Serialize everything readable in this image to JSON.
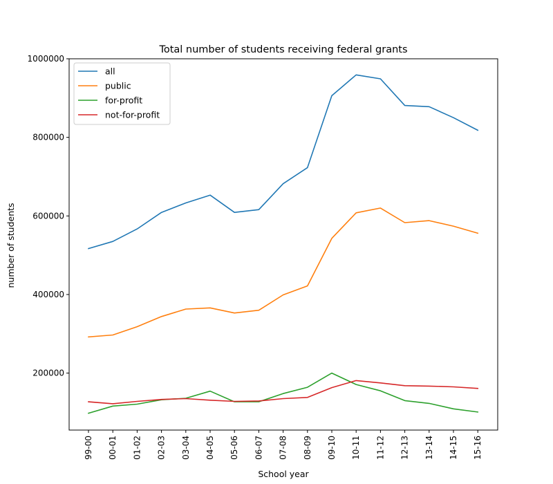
{
  "chart_data": {
    "type": "line",
    "title": "Total number of students receiving federal grants",
    "xlabel": "School year",
    "ylabel": "number of students",
    "categories": [
      "99-00",
      "00-01",
      "01-02",
      "02-03",
      "03-04",
      "04-05",
      "05-06",
      "06-07",
      "07-08",
      "08-09",
      "09-10",
      "10-11",
      "11-12",
      "12-13",
      "13-14",
      "14-15",
      "15-16"
    ],
    "ylim": [
      55000,
      1000000
    ],
    "yticks": [
      200000,
      400000,
      600000,
      800000,
      1000000
    ],
    "grid": false,
    "legend_position": "top-left",
    "series": [
      {
        "name": "all",
        "color": "#1f77b4",
        "values": [
          517000,
          535000,
          567000,
          609000,
          633000,
          653000,
          609000,
          616000,
          682000,
          723000,
          906000,
          959000,
          949000,
          881000,
          878000,
          850000,
          818000
        ]
      },
      {
        "name": "public",
        "color": "#ff7f0e",
        "values": [
          292000,
          297000,
          318000,
          344000,
          363000,
          366000,
          353000,
          360000,
          399000,
          422000,
          543000,
          608000,
          620000,
          583000,
          588000,
          574000,
          556000
        ]
      },
      {
        "name": "for-profit",
        "color": "#2ca02c",
        "values": [
          98000,
          116000,
          121000,
          132000,
          136000,
          154000,
          127000,
          127000,
          148000,
          164000,
          200000,
          171000,
          155000,
          130000,
          123000,
          109000,
          101000
        ]
      },
      {
        "name": "not-for-profit",
        "color": "#d62728",
        "values": [
          127000,
          122000,
          128000,
          133000,
          135000,
          131000,
          128000,
          129000,
          135000,
          138000,
          163000,
          181000,
          175000,
          168000,
          167000,
          165000,
          161000
        ]
      }
    ]
  }
}
